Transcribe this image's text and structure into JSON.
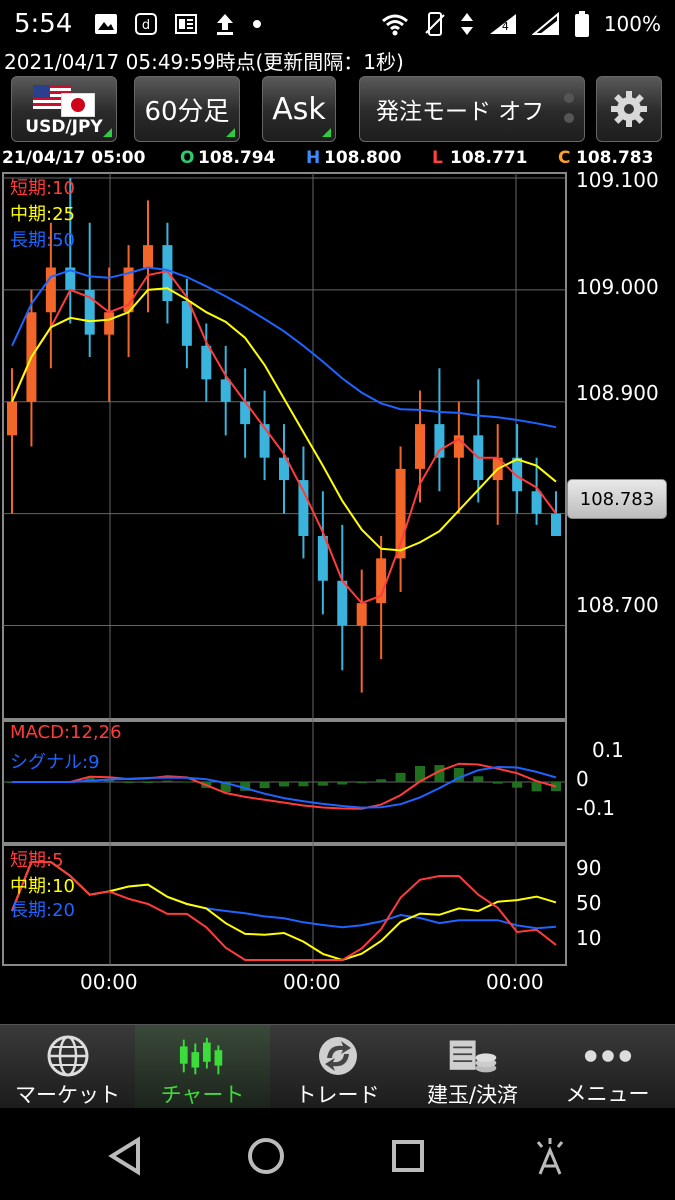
{
  "status_bar": {
    "time": "5:54",
    "battery": "100%",
    "signal_badge": "4",
    "icons_left": [
      "image-icon",
      "d-app-icon",
      "news-icon",
      "upload-icon",
      "dot-icon"
    ],
    "icons_right": [
      "wifi-icon",
      "vibrate-icon",
      "data-arrows-icon",
      "signal-icon",
      "no-signal-icon",
      "battery-icon"
    ]
  },
  "timestamp_line": "2021/04/17  05:49:59時点(更新間隔：1秒)",
  "toolbar": {
    "pair_label": "USD/JPY",
    "timeframe": "60分足",
    "price_type": "Ask",
    "order_mode": "発注モード オフ",
    "settings_icon": "gear-icon"
  },
  "ohlc": {
    "date": "21/04/17 05:00",
    "o_label": "O",
    "o_value": "108.794",
    "h_label": "H",
    "h_value": "108.800",
    "l_label": "L",
    "l_value": "108.771",
    "c_label": "C",
    "c_value": "108.783"
  },
  "colors": {
    "up": "#f2662a",
    "down": "#3ab4dc",
    "short_ma": "#ff3b3b",
    "mid_ma": "#ffff00",
    "long_ma": "#1e64ff",
    "open": "#2ecc71",
    "high": "#3a8dff",
    "low": "#ff4040",
    "close": "#ff9f2a"
  },
  "main_chart": {
    "legend_short": "短期:10",
    "legend_mid": "中期:25",
    "legend_long": "長期:50",
    "y_labels": [
      "109.100",
      "109.000",
      "108.900",
      "108.700"
    ],
    "current_price": "108.783"
  },
  "macd": {
    "legend_macd": "MACD:12,26",
    "legend_signal": "シグナル:9",
    "y_labels": [
      "0.1",
      "0",
      "-0.1"
    ]
  },
  "rsi": {
    "legend_short": "短期:5",
    "legend_mid": "中期:10",
    "legend_long": "長期:20",
    "y_labels": [
      "90",
      "50",
      "10"
    ]
  },
  "x_labels": [
    "00:00",
    "00:00",
    "00:00"
  ],
  "bottom_nav": [
    {
      "label": "マーケット",
      "icon": "globe-icon"
    },
    {
      "label": "チャート",
      "icon": "candlestick-icon"
    },
    {
      "label": "トレード",
      "icon": "trade-icon"
    },
    {
      "label": "建玉/決済",
      "icon": "coins-icon"
    },
    {
      "label": "メニュー",
      "icon": "more-dots-icon"
    }
  ],
  "chart_data": {
    "type": "line",
    "ylim": [
      108.62,
      109.1
    ],
    "candles": [
      {
        "o": 108.87,
        "h": 108.93,
        "l": 108.8,
        "c": 108.9
      },
      {
        "o": 108.9,
        "h": 109.0,
        "l": 108.86,
        "c": 108.98
      },
      {
        "o": 108.98,
        "h": 109.06,
        "l": 108.93,
        "c": 109.02
      },
      {
        "o": 109.02,
        "h": 109.1,
        "l": 108.97,
        "c": 109.0
      },
      {
        "o": 109.0,
        "h": 109.06,
        "l": 108.94,
        "c": 108.96
      },
      {
        "o": 108.96,
        "h": 109.02,
        "l": 108.9,
        "c": 108.98
      },
      {
        "o": 108.98,
        "h": 109.04,
        "l": 108.94,
        "c": 109.02
      },
      {
        "o": 109.02,
        "h": 109.08,
        "l": 108.98,
        "c": 109.04
      },
      {
        "o": 109.04,
        "h": 109.06,
        "l": 108.97,
        "c": 108.99
      },
      {
        "o": 108.99,
        "h": 109.01,
        "l": 108.93,
        "c": 108.95
      },
      {
        "o": 108.95,
        "h": 108.97,
        "l": 108.9,
        "c": 108.92
      },
      {
        "o": 108.92,
        "h": 108.95,
        "l": 108.87,
        "c": 108.9
      },
      {
        "o": 108.9,
        "h": 108.93,
        "l": 108.85,
        "c": 108.88
      },
      {
        "o": 108.88,
        "h": 108.91,
        "l": 108.83,
        "c": 108.85
      },
      {
        "o": 108.85,
        "h": 108.88,
        "l": 108.8,
        "c": 108.83
      },
      {
        "o": 108.83,
        "h": 108.86,
        "l": 108.76,
        "c": 108.78
      },
      {
        "o": 108.78,
        "h": 108.82,
        "l": 108.71,
        "c": 108.74
      },
      {
        "o": 108.74,
        "h": 108.79,
        "l": 108.66,
        "c": 108.7
      },
      {
        "o": 108.7,
        "h": 108.75,
        "l": 108.64,
        "c": 108.72
      },
      {
        "o": 108.72,
        "h": 108.78,
        "l": 108.67,
        "c": 108.76
      },
      {
        "o": 108.76,
        "h": 108.86,
        "l": 108.73,
        "c": 108.84
      },
      {
        "o": 108.84,
        "h": 108.91,
        "l": 108.81,
        "c": 108.88
      },
      {
        "o": 108.88,
        "h": 108.93,
        "l": 108.82,
        "c": 108.85
      },
      {
        "o": 108.85,
        "h": 108.9,
        "l": 108.8,
        "c": 108.87
      },
      {
        "o": 108.87,
        "h": 108.92,
        "l": 108.81,
        "c": 108.83
      },
      {
        "o": 108.83,
        "h": 108.88,
        "l": 108.79,
        "c": 108.85
      },
      {
        "o": 108.85,
        "h": 108.88,
        "l": 108.8,
        "c": 108.82
      },
      {
        "o": 108.82,
        "h": 108.85,
        "l": 108.79,
        "c": 108.8
      },
      {
        "o": 108.8,
        "h": 108.82,
        "l": 108.78,
        "c": 108.78
      }
    ]
  }
}
